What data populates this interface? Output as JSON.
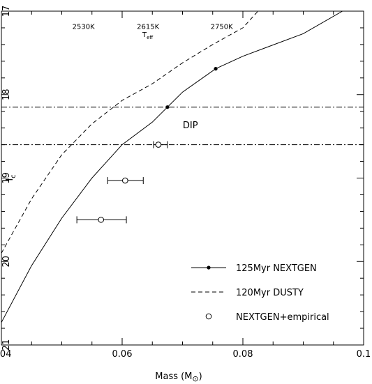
{
  "chart_data": {
    "type": "line",
    "title": "",
    "xlabel": "Mass (M",
    "xlabel_sub": "⊙",
    "xlabel_close": ")",
    "ylabel": "I",
    "ylabel_sub": "c",
    "xlim": [
      0.04,
      0.1
    ],
    "ylim": [
      21,
      17
    ],
    "y_inverted": true,
    "x_ticks": [
      0.04,
      0.06,
      0.08,
      0.1
    ],
    "x_tick_labels": [
      "0.04",
      "0.06",
      "0.08",
      "0.1"
    ],
    "y_ticks": [
      17,
      18,
      19,
      20,
      21
    ],
    "y_tick_labels": [
      "17",
      "18",
      "19",
      "20",
      "21"
    ],
    "grid": false,
    "legend_position": "bottom-right",
    "series": [
      {
        "name": "125Myr NEXTGEN",
        "style": "solid",
        "x": [
          0.04,
          0.045,
          0.05,
          0.055,
          0.06,
          0.065,
          0.0675,
          0.07,
          0.0755,
          0.08,
          0.09,
          0.0965
        ],
        "y": [
          20.73,
          20.05,
          19.48,
          19.0,
          18.6,
          18.33,
          18.15,
          17.97,
          17.69,
          17.54,
          17.27,
          17.0
        ],
        "markers_x": [
          0.0675,
          0.0755
        ],
        "markers_y": [
          18.15,
          17.69
        ]
      },
      {
        "name": "120Myr DUSTY",
        "style": "dashed",
        "x": [
          0.04,
          0.045,
          0.05,
          0.055,
          0.06,
          0.065,
          0.07,
          0.075,
          0.08,
          0.0825
        ],
        "y": [
          19.9,
          19.25,
          18.72,
          18.35,
          18.07,
          17.87,
          17.62,
          17.4,
          17.2,
          17.0
        ]
      },
      {
        "name": "NEXTGEN+empirical",
        "style": "open-circle-errorbar",
        "x": [
          0.066,
          0.0605,
          0.0565
        ],
        "y": [
          18.6,
          19.03,
          19.5
        ],
        "x_err_low": [
          0.0652,
          0.0576,
          0.0525
        ],
        "x_err_high": [
          0.0675,
          0.0635,
          0.0607
        ]
      }
    ],
    "reference_lines": [
      {
        "type": "horizontal",
        "style": "dash-dot",
        "y": 18.15
      },
      {
        "type": "horizontal",
        "style": "dash-dot",
        "y": 18.6
      }
    ],
    "annotations": [
      {
        "text": "DIP",
        "x": 0.0713,
        "y": 18.36
      },
      {
        "text": "2530K",
        "x": 0.0536,
        "y": 17.18
      },
      {
        "text": "2615K",
        "x": 0.0643,
        "y": 17.18
      },
      {
        "text": "2750K",
        "x": 0.0765,
        "y": 17.18
      }
    ],
    "teff_label": "T",
    "teff_sub": "eff",
    "legend": [
      {
        "label": "125Myr NEXTGEN",
        "marker": "line-dot"
      },
      {
        "label": "120Myr DUSTY",
        "marker": "dashed-line"
      },
      {
        "label": "NEXTGEN+empirical",
        "marker": "open-circle"
      }
    ]
  }
}
